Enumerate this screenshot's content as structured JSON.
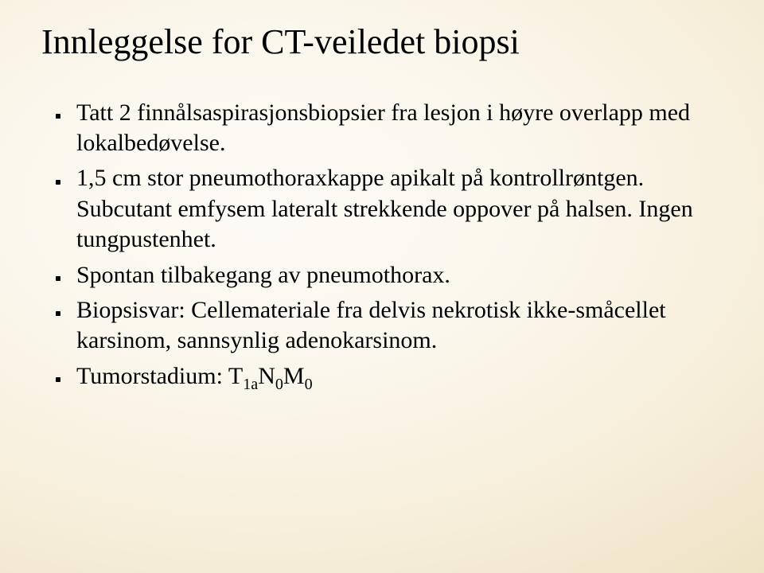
{
  "slide": {
    "title": "Innleggelse for CT-veiledet biopsi",
    "title_fontsize": 44,
    "body_fontsize": 30,
    "text_color": "#000000",
    "background": {
      "type": "radial-gradient",
      "center_color": "#fdfbf5",
      "edge_color": "#e5d4ab"
    },
    "bullets": [
      "Tatt 2 finnålsaspirasjonsbiopsier fra lesjon i høyre overlapp med lokalbedøvelse.",
      "1,5 cm stor pneumothoraxkappe apikalt på kontrollrøntgen. Subcutant emfysem lateralt strekkende oppover på halsen. Ingen tungpustenhet.",
      "Spontan tilbakegang av pneumothorax.",
      "Biopsisvar: Cellemateriale fra delvis nekrotisk ikke-småcellet karsinom, sannsynlig adenokarsinom."
    ],
    "stage_bullet": {
      "prefix": "Tumorstadium: T",
      "sub1": "1a",
      "mid1": "N",
      "sub2": "0",
      "mid2": "M",
      "sub3": "0"
    }
  }
}
